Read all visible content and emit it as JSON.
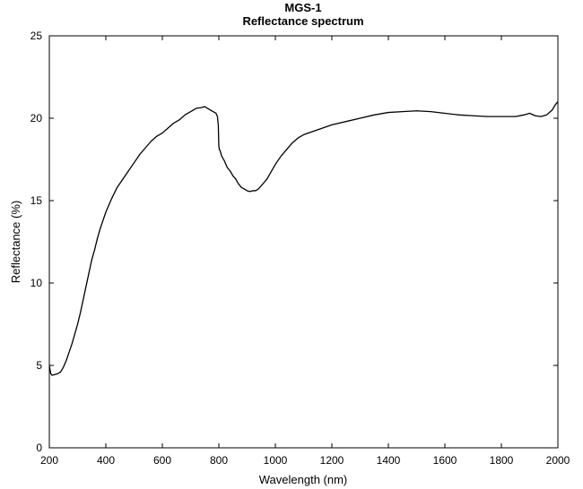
{
  "chart_data": {
    "type": "line",
    "title": "MGS-1",
    "subtitle": "Reflectance spectrum",
    "xlabel": "Wavelength (nm)",
    "ylabel": "Reflectance (%)",
    "xlim": [
      200,
      2000
    ],
    "ylim": [
      0,
      25
    ],
    "xticks": [
      200,
      400,
      600,
      800,
      1000,
      1200,
      1400,
      1600,
      1800,
      2000
    ],
    "yticks": [
      0,
      5,
      10,
      15,
      20,
      25
    ],
    "grid": false,
    "legend": "none",
    "line_color": "#000000",
    "series": [
      {
        "x": [
          200,
          205,
          210,
          220,
          230,
          240,
          250,
          260,
          270,
          280,
          290,
          300,
          310,
          320,
          330,
          340,
          350,
          360,
          370,
          380,
          390,
          400,
          420,
          440,
          460,
          480,
          500,
          520,
          540,
          560,
          580,
          600,
          620,
          640,
          660,
          680,
          700,
          720,
          740,
          750,
          760,
          770,
          780,
          790,
          795,
          798,
          800,
          802,
          805,
          810,
          820,
          830,
          840,
          850,
          860,
          870,
          880,
          890,
          900,
          910,
          920,
          930,
          940,
          950,
          960,
          970,
          980,
          990,
          1000,
          1020,
          1040,
          1060,
          1080,
          1100,
          1150,
          1200,
          1250,
          1300,
          1350,
          1400,
          1450,
          1500,
          1550,
          1600,
          1650,
          1700,
          1750,
          1800,
          1850,
          1880,
          1900,
          1920,
          1940,
          1960,
          1980,
          1990,
          2000
        ],
        "y": [
          5.0,
          4.5,
          4.4,
          4.45,
          4.5,
          4.6,
          4.9,
          5.3,
          5.8,
          6.3,
          6.9,
          7.5,
          8.2,
          9.0,
          9.8,
          10.6,
          11.4,
          12.0,
          12.7,
          13.3,
          13.8,
          14.3,
          15.1,
          15.8,
          16.3,
          16.8,
          17.3,
          17.8,
          18.2,
          18.6,
          18.9,
          19.1,
          19.4,
          19.7,
          19.9,
          20.2,
          20.4,
          20.6,
          20.65,
          20.7,
          20.6,
          20.5,
          20.4,
          20.3,
          20.1,
          19.6,
          18.3,
          18.1,
          18.0,
          17.7,
          17.4,
          17.0,
          16.8,
          16.5,
          16.3,
          16.0,
          15.8,
          15.7,
          15.6,
          15.55,
          15.6,
          15.6,
          15.7,
          15.9,
          16.1,
          16.3,
          16.6,
          16.9,
          17.2,
          17.7,
          18.1,
          18.5,
          18.8,
          19.0,
          19.3,
          19.6,
          19.8,
          20.0,
          20.2,
          20.35,
          20.4,
          20.45,
          20.4,
          20.3,
          20.2,
          20.15,
          20.1,
          20.1,
          20.1,
          20.2,
          20.3,
          20.15,
          20.1,
          20.2,
          20.5,
          20.8,
          21.0
        ]
      }
    ]
  }
}
